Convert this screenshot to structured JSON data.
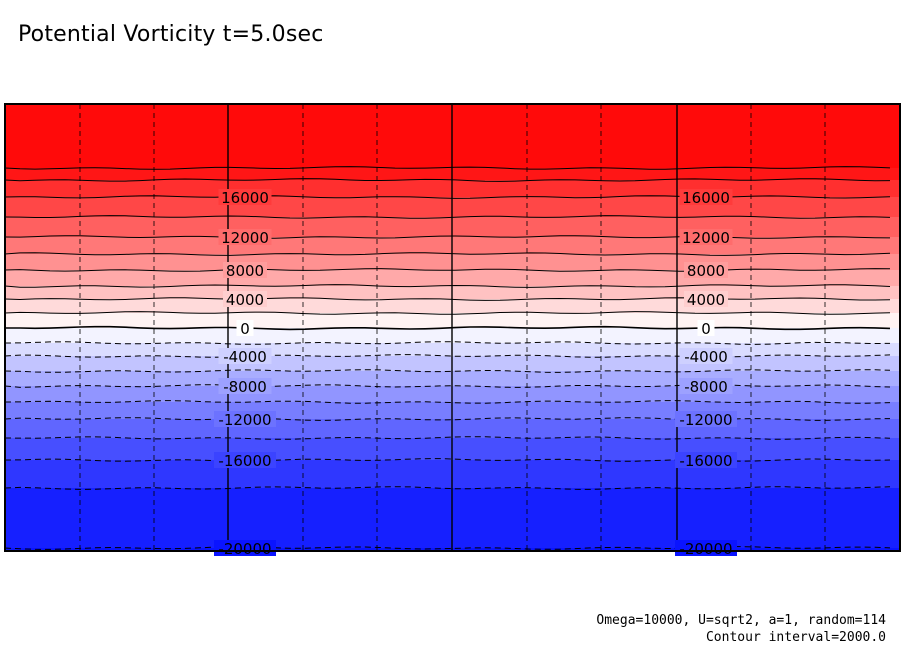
{
  "title": "Potential Vorticity t=5.0sec",
  "footer": {
    "params": "Omega=10000, U=sqrt2, a=1, random=114",
    "interval": "Contour interval=2000.0"
  },
  "chart_data": {
    "type": "contour",
    "title": "Potential Vorticity t=5.0sec",
    "contour_interval": 2000,
    "value_range": [
      -20000,
      20000
    ],
    "colormap": {
      "negative_color": "#0a14ff",
      "zero_color": "#ffffff",
      "positive_color": "#ff0a0a"
    },
    "contour_levels": [
      20000,
      18000,
      16000,
      14000,
      12000,
      10000,
      8000,
      6000,
      4000,
      2000,
      0,
      -2000,
      -4000,
      -6000,
      -8000,
      -10000,
      -12000,
      -14000,
      -16000,
      -18000,
      -20000
    ],
    "labeled_levels": [
      {
        "value": 16000,
        "labels": [
          "16000",
          "16000"
        ]
      },
      {
        "value": 12000,
        "labels": [
          "12000",
          "12000"
        ]
      },
      {
        "value": 8000,
        "labels": [
          "8000",
          "8000"
        ]
      },
      {
        "value": 4000,
        "labels": [
          "4000",
          "4000"
        ]
      },
      {
        "value": 0,
        "labels": [
          "0",
          "0"
        ]
      },
      {
        "value": -4000,
        "labels": [
          "-4000",
          "-4000"
        ]
      },
      {
        "value": -8000,
        "labels": [
          "-8000",
          "-8000"
        ]
      },
      {
        "value": -12000,
        "labels": [
          "-12000",
          "-12000"
        ]
      },
      {
        "value": -16000,
        "labels": [
          "-16000",
          "-16000"
        ]
      },
      {
        "value": -20000,
        "labels": [
          "-20000",
          "-20000"
        ]
      }
    ],
    "negative_contours_style": "dashed",
    "positive_contours_style": "solid",
    "grid": true
  }
}
